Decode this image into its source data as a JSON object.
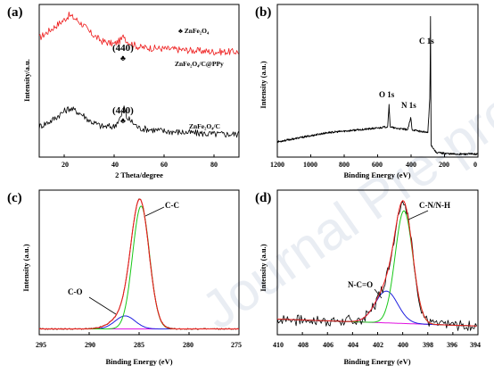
{
  "watermark": "Journal Pre-proofs",
  "panels": [
    {
      "label": "(a)",
      "xlabel": "2 Theta/degree",
      "ylabel": "Intensity/a.u.",
      "xticks": [
        "20",
        "40",
        "60",
        "80"
      ],
      "legend": "♣ ZnFe₂O₄",
      "annotations": [
        {
          "text": "(440)",
          "glyph": "♣",
          "for": "upper"
        },
        {
          "text": "(440)",
          "glyph": "♣",
          "for": "lower"
        }
      ],
      "series_labels": [
        "ZnFe₂O₄/C@PPy",
        "ZnFe₂O₄/C"
      ]
    },
    {
      "label": "(b)",
      "xlabel": "Binding Energy (eV)",
      "ylabel": "Intensity (a.u.)",
      "xticks": [
        "1200",
        "1000",
        "800",
        "600",
        "400",
        "200",
        "0"
      ],
      "annotations": [
        "O 1s",
        "N 1s",
        "C 1s"
      ]
    },
    {
      "label": "(c)",
      "xlabel": "Binding Energy (eV)",
      "ylabel": "Intensity (a.u.)",
      "xticks": [
        "295",
        "290",
        "285",
        "280",
        "275"
      ],
      "annotations": [
        "C-C",
        "C-O"
      ]
    },
    {
      "label": "(d)",
      "xlabel": "Binding Energy (eV)",
      "ylabel": "Intensity (a.u.)",
      "xticks": [
        "410",
        "408",
        "406",
        "404",
        "402",
        "400",
        "398",
        "396",
        "394"
      ],
      "annotations": [
        "C-N/N-H",
        "N-C=O"
      ]
    }
  ],
  "colors": {
    "red": "#ee1c1c",
    "black": "#000000",
    "green": "#18c818",
    "blue": "#2020e0",
    "magenta": "#e010e0",
    "brown": "#7a2a10"
  },
  "chart_data": [
    {
      "type": "line",
      "title": "",
      "xlabel": "2 Theta/degree",
      "ylabel": "Intensity/a.u.",
      "xlim": [
        10,
        90
      ],
      "series": [
        {
          "name": "ZnFe₂O₄/C@PPy",
          "color": "#ee1c1c",
          "x": [
            10,
            15,
            20,
            22,
            25,
            28,
            30,
            35,
            40,
            43,
            44,
            45,
            50,
            60,
            70,
            80,
            90
          ],
          "y": [
            0.78,
            0.84,
            0.9,
            0.93,
            0.9,
            0.86,
            0.82,
            0.76,
            0.74,
            0.77,
            0.8,
            0.76,
            0.72,
            0.71,
            0.7,
            0.69,
            0.69
          ]
        },
        {
          "name": "ZnFe₂O₄/C",
          "color": "#000000",
          "x": [
            10,
            15,
            20,
            22,
            25,
            28,
            30,
            35,
            40,
            43,
            44,
            45,
            50,
            60,
            70,
            80,
            90
          ],
          "y": [
            0.2,
            0.24,
            0.3,
            0.32,
            0.3,
            0.27,
            0.24,
            0.2,
            0.2,
            0.27,
            0.33,
            0.26,
            0.19,
            0.17,
            0.16,
            0.15,
            0.15
          ]
        }
      ]
    },
    {
      "type": "line",
      "title": "",
      "xlabel": "Binding Energy (eV)",
      "ylabel": "Intensity (a.u.)",
      "xlim": [
        1200,
        0
      ],
      "series": [
        {
          "name": "",
          "color": "#000000",
          "x": [
            1200,
            1100,
            1000,
            900,
            800,
            700,
            600,
            540,
            532,
            525,
            500,
            420,
            401,
            395,
            350,
            300,
            287,
            284,
            280,
            250,
            150,
            50,
            0
          ],
          "y": [
            0.1,
            0.12,
            0.14,
            0.16,
            0.17,
            0.18,
            0.19,
            0.2,
            0.34,
            0.2,
            0.19,
            0.18,
            0.26,
            0.18,
            0.17,
            0.16,
            0.4,
            0.92,
            0.08,
            0.03,
            0.02,
            0.02,
            0.02
          ]
        }
      ]
    },
    {
      "type": "line",
      "title": "",
      "xlabel": "Binding Energy (eV)",
      "ylabel": "Intensity (a.u.)",
      "xlim": [
        295,
        275
      ],
      "components": [
        {
          "name": "",
          "color": "#ee1c1c",
          "center": 284.9,
          "width": 0.9,
          "height": 0.86,
          "tail": [
            286.5,
            0.09,
            1.2
          ]
        },
        {
          "name": "",
          "color": "#18c818",
          "center": 284.8,
          "width": 0.85,
          "height": 0.85
        },
        {
          "name": "",
          "color": "#2020e0",
          "center": 286.4,
          "width": 1.0,
          "height": 0.09
        },
        {
          "name": "",
          "color": "#e010e0",
          "baseline": 0.04
        }
      ]
    },
    {
      "type": "line",
      "title": "",
      "xlabel": "Binding Energy (eV)",
      "ylabel": "Intensity (a.u.)",
      "xlim": [
        410,
        394
      ],
      "components": [
        {
          "name": "",
          "color": "#18c818",
          "center": 399.9,
          "width": 0.7,
          "height": 0.78
        },
        {
          "name": "",
          "color": "#2020e0",
          "center": 401.3,
          "width": 0.9,
          "height": 0.22
        },
        {
          "name": "",
          "color": "#e010e0",
          "baseline": 0.06
        }
      ]
    }
  ]
}
